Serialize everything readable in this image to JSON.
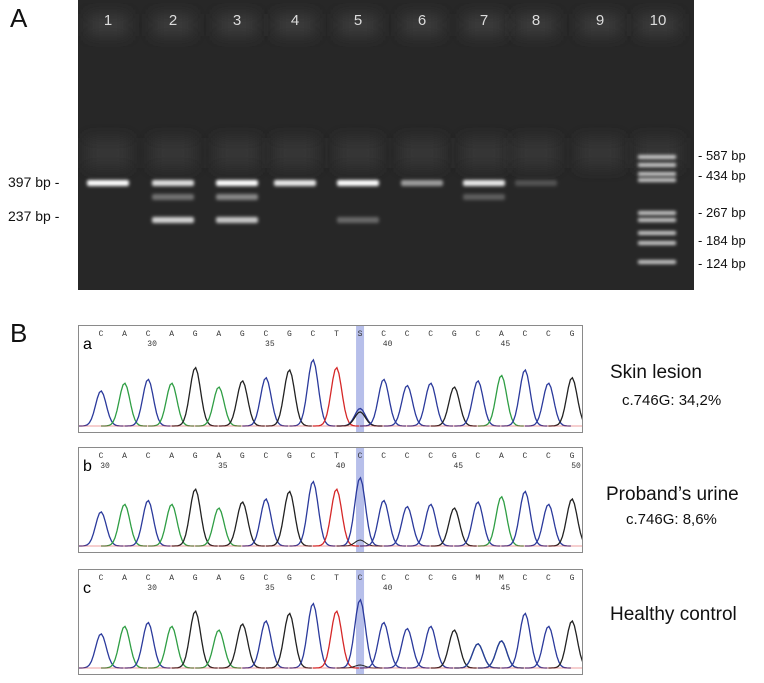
{
  "panel_a_label": "A",
  "panel_b_label": "B",
  "gel": {
    "lanes": [
      "1",
      "2",
      "3",
      "4",
      "5",
      "6",
      "7",
      "8",
      "9",
      "10"
    ],
    "left_markers": [
      "397 bp -",
      "237 bp -"
    ],
    "ladder_markers": [
      "- 587 bp",
      "- 434 bp",
      "- 267 bp",
      "- 184 bp",
      "- 124 bp"
    ]
  },
  "chromatograms": [
    {
      "letter": "a",
      "bases": [
        "C",
        "A",
        "C",
        "A",
        "G",
        "A",
        "G",
        "C",
        "G",
        "C",
        "T",
        "S",
        "C",
        "C",
        "C",
        "G",
        "C",
        "A",
        "C",
        "C",
        "G"
      ],
      "position_labels": [
        "30",
        "35",
        "40",
        "45"
      ],
      "title": "Skin lesion",
      "subtitle": "c.746G: 34,2%"
    },
    {
      "letter": "b",
      "bases": [
        "C",
        "A",
        "C",
        "A",
        "G",
        "A",
        "G",
        "C",
        "G",
        "C",
        "T",
        "C",
        "C",
        "C",
        "C",
        "G",
        "C",
        "A",
        "C",
        "C",
        "G"
      ],
      "position_labels": [
        "30",
        "35",
        "40",
        "45",
        "50"
      ],
      "title": "Proband’s urine",
      "subtitle": "c.746G: 8,6%"
    },
    {
      "letter": "c",
      "bases": [
        "C",
        "A",
        "C",
        "A",
        "G",
        "A",
        "G",
        "C",
        "G",
        "C",
        "T",
        "C",
        "C",
        "C",
        "C",
        "G",
        "M",
        "M",
        "C",
        "C",
        "G"
      ],
      "position_labels": [
        "30",
        "35",
        "40",
        "45"
      ],
      "title": "Healthy control",
      "subtitle": ""
    }
  ],
  "colors": {
    "A": "#2f9e44",
    "C": "#2b3a9c",
    "G": "#222222",
    "T": "#d62828",
    "highlight": "#aab4e6",
    "gel_bg": "#272727"
  }
}
